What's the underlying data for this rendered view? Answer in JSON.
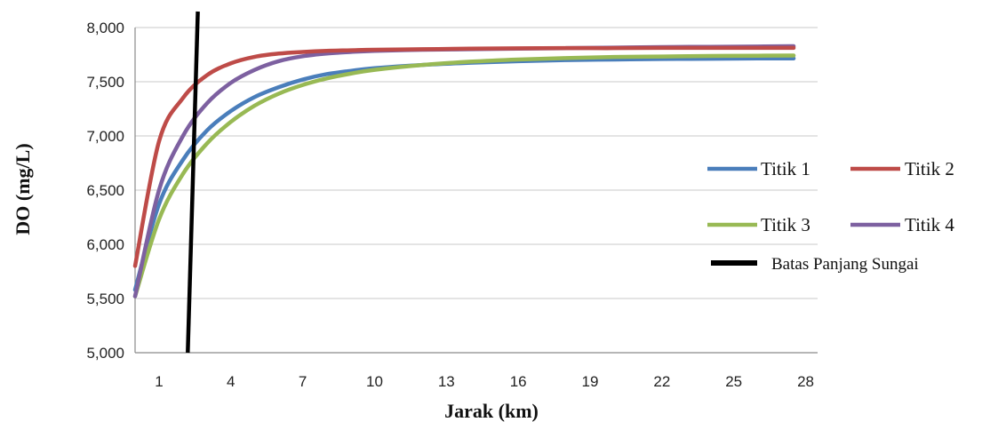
{
  "chart_data": {
    "type": "line",
    "xlabel": "Jarak (km)",
    "ylabel": "DO  (mg/L)",
    "xlim": [
      0,
      28.5
    ],
    "ylim": [
      5000,
      8000
    ],
    "x_ticks": [
      "1",
      "4",
      "7",
      "10",
      "13",
      "16",
      "19",
      "22",
      "25",
      "28"
    ],
    "y_ticks": [
      "5,000",
      "5,500",
      "6,000",
      "6,500",
      "7,000",
      "7,500",
      "8,000"
    ],
    "grid": "horizontal",
    "legend_position": "right",
    "series": [
      {
        "name": "Titik 1",
        "color": "#4a7ebb",
        "x": [
          0,
          1,
          2,
          3,
          4,
          5,
          6,
          7,
          8,
          9,
          10,
          12,
          14,
          16,
          18,
          20,
          22,
          24,
          26,
          27.5
        ],
        "y": [
          5580,
          6370,
          6780,
          7050,
          7230,
          7360,
          7450,
          7520,
          7570,
          7600,
          7625,
          7655,
          7675,
          7690,
          7700,
          7705,
          7710,
          7712,
          7715,
          7715
        ]
      },
      {
        "name": "Titik 2",
        "color": "#be4b48",
        "x": [
          0,
          1,
          2,
          3,
          4,
          5,
          6,
          7,
          8,
          9,
          10,
          12,
          14,
          16,
          18,
          20,
          22,
          24,
          26,
          27.5
        ],
        "y": [
          5800,
          6950,
          7350,
          7560,
          7670,
          7730,
          7760,
          7775,
          7785,
          7790,
          7795,
          7800,
          7805,
          7808,
          7810,
          7810,
          7812,
          7812,
          7812,
          7812
        ]
      },
      {
        "name": "Titik 3",
        "color": "#98b954",
        "x": [
          0,
          1,
          2,
          3,
          4,
          5,
          6,
          7,
          8,
          9,
          10,
          12,
          14,
          16,
          18,
          20,
          22,
          24,
          26,
          27.5
        ],
        "y": [
          5520,
          6230,
          6650,
          6930,
          7130,
          7280,
          7390,
          7470,
          7530,
          7575,
          7610,
          7655,
          7685,
          7705,
          7718,
          7728,
          7733,
          7738,
          7740,
          7742
        ]
      },
      {
        "name": "Titik 4",
        "color": "#7d60a0",
        "x": [
          0,
          1,
          2,
          3,
          4,
          5,
          6,
          7,
          8,
          9,
          10,
          12,
          14,
          16,
          18,
          20,
          22,
          24,
          26,
          27.5
        ],
        "y": [
          5520,
          6500,
          7000,
          7300,
          7490,
          7610,
          7690,
          7735,
          7760,
          7775,
          7785,
          7795,
          7800,
          7805,
          7810,
          7815,
          7820,
          7822,
          7825,
          7828
        ]
      }
    ],
    "vertical_line": {
      "name": "Batas Panjang Sungai",
      "color": "#000000",
      "x": [
        2.2,
        2.6
      ],
      "y": [
        5000,
        8000
      ]
    }
  }
}
